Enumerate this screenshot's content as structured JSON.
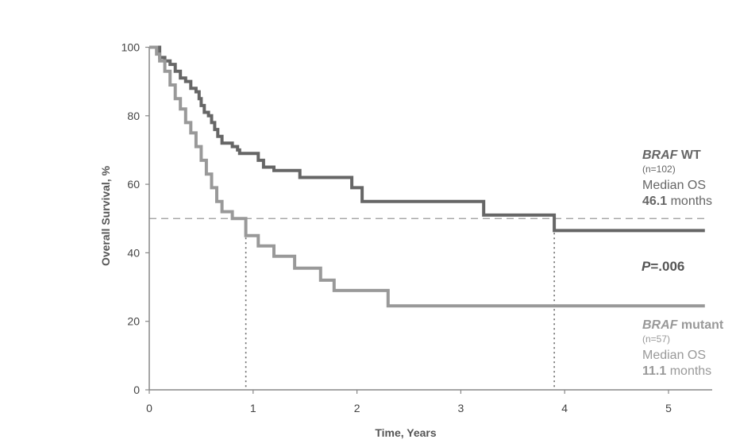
{
  "chart_data": {
    "type": "line",
    "xlabel": "Time, Years",
    "ylabel": "Overall Survival, %",
    "xlim": [
      0,
      5.4
    ],
    "ylim": [
      0,
      100
    ],
    "xticks": [
      "0",
      "1",
      "2",
      "3",
      "4",
      "5"
    ],
    "yticks": [
      "0",
      "20",
      "40",
      "60",
      "80",
      "100"
    ],
    "reference_line": {
      "y": 50,
      "style": "dashed"
    },
    "median_markers": [
      {
        "x": 0.93,
        "series": "BRAF mutant"
      },
      {
        "x": 3.9,
        "series": "BRAF WT"
      }
    ],
    "series": [
      {
        "name": "BRAF WT",
        "color": "#666666",
        "points": [
          [
            0,
            100
          ],
          [
            0.1,
            100
          ],
          [
            0.1,
            97
          ],
          [
            0.15,
            97
          ],
          [
            0.15,
            96
          ],
          [
            0.2,
            96
          ],
          [
            0.2,
            95
          ],
          [
            0.25,
            95
          ],
          [
            0.25,
            93
          ],
          [
            0.3,
            93
          ],
          [
            0.3,
            91
          ],
          [
            0.35,
            91
          ],
          [
            0.35,
            90
          ],
          [
            0.4,
            90
          ],
          [
            0.4,
            88
          ],
          [
            0.45,
            88
          ],
          [
            0.45,
            87
          ],
          [
            0.48,
            87
          ],
          [
            0.48,
            85
          ],
          [
            0.5,
            85
          ],
          [
            0.5,
            83
          ],
          [
            0.53,
            83
          ],
          [
            0.53,
            81
          ],
          [
            0.57,
            81
          ],
          [
            0.57,
            80
          ],
          [
            0.6,
            80
          ],
          [
            0.6,
            78
          ],
          [
            0.63,
            78
          ],
          [
            0.63,
            76
          ],
          [
            0.66,
            76
          ],
          [
            0.66,
            74
          ],
          [
            0.7,
            74
          ],
          [
            0.7,
            72
          ],
          [
            0.8,
            72
          ],
          [
            0.8,
            71
          ],
          [
            0.85,
            71
          ],
          [
            0.85,
            70
          ],
          [
            0.87,
            70
          ],
          [
            0.87,
            69
          ],
          [
            1.05,
            69
          ],
          [
            1.05,
            67
          ],
          [
            1.1,
            67
          ],
          [
            1.1,
            65
          ],
          [
            1.2,
            65
          ],
          [
            1.2,
            64
          ],
          [
            1.45,
            64
          ],
          [
            1.45,
            62
          ],
          [
            1.95,
            62
          ],
          [
            1.95,
            59
          ],
          [
            2.05,
            59
          ],
          [
            2.05,
            55
          ],
          [
            3.22,
            55
          ],
          [
            3.22,
            51
          ],
          [
            3.9,
            51
          ],
          [
            3.9,
            46.5
          ],
          [
            5.35,
            46.5
          ]
        ]
      },
      {
        "name": "BRAF mutant",
        "color": "#999999",
        "points": [
          [
            0,
            100
          ],
          [
            0.07,
            100
          ],
          [
            0.07,
            98
          ],
          [
            0.1,
            98
          ],
          [
            0.1,
            96
          ],
          [
            0.15,
            96
          ],
          [
            0.15,
            93
          ],
          [
            0.2,
            93
          ],
          [
            0.2,
            89
          ],
          [
            0.25,
            89
          ],
          [
            0.25,
            85
          ],
          [
            0.3,
            85
          ],
          [
            0.3,
            82
          ],
          [
            0.35,
            82
          ],
          [
            0.35,
            78
          ],
          [
            0.4,
            78
          ],
          [
            0.4,
            75
          ],
          [
            0.45,
            75
          ],
          [
            0.45,
            71
          ],
          [
            0.5,
            71
          ],
          [
            0.5,
            67
          ],
          [
            0.55,
            67
          ],
          [
            0.55,
            63
          ],
          [
            0.6,
            63
          ],
          [
            0.6,
            59
          ],
          [
            0.65,
            59
          ],
          [
            0.65,
            55
          ],
          [
            0.7,
            55
          ],
          [
            0.7,
            52
          ],
          [
            0.8,
            52
          ],
          [
            0.8,
            50
          ],
          [
            0.93,
            50
          ],
          [
            0.93,
            45
          ],
          [
            1.05,
            45
          ],
          [
            1.05,
            42
          ],
          [
            1.2,
            42
          ],
          [
            1.2,
            39
          ],
          [
            1.4,
            39
          ],
          [
            1.4,
            35.5
          ],
          [
            1.65,
            35.5
          ],
          [
            1.65,
            32
          ],
          [
            1.78,
            32
          ],
          [
            1.78,
            29
          ],
          [
            2.3,
            29
          ],
          [
            2.3,
            24.5
          ],
          [
            5.35,
            24.5
          ]
        ]
      }
    ],
    "annotations": {
      "wt": {
        "gene": "BRAF",
        "label": " WT",
        "n": "(n=102)",
        "median_label": "Median OS",
        "median_value": "46.1",
        "median_unit": " months"
      },
      "mut": {
        "gene": "BRAF",
        "label": " mutant",
        "n": "(n=57)",
        "median_label": "Median OS",
        "median_value": "11.1",
        "median_unit": " months"
      },
      "p_symbol": "P",
      "p_value": "=.006"
    }
  }
}
